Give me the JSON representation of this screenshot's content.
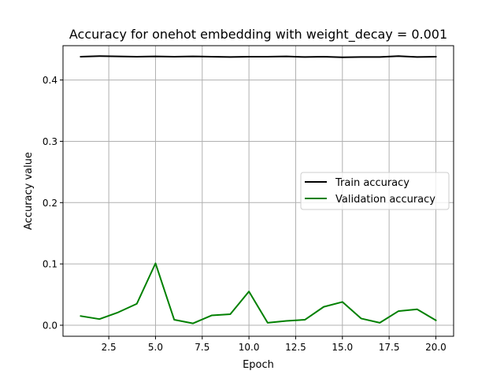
{
  "chart_data": {
    "type": "line",
    "title": "Accuracy for onehot embedding with weight_decay = 0.001",
    "xlabel": "Epoch",
    "ylabel": "Accuracy value",
    "xlim": [
      0.05,
      20.95
    ],
    "ylim": [
      -0.018,
      0.456
    ],
    "xticks": [
      2.5,
      5.0,
      7.5,
      10.0,
      12.5,
      15.0,
      17.5,
      20.0
    ],
    "xtick_labels": [
      "2.5",
      "5.0",
      "7.5",
      "10.0",
      "12.5",
      "15.0",
      "17.5",
      "20.0"
    ],
    "yticks": [
      0.0,
      0.1,
      0.2,
      0.3,
      0.4
    ],
    "ytick_labels": [
      "0.0",
      "0.1",
      "0.2",
      "0.3",
      "0.4"
    ],
    "grid": true,
    "legend_position": "center-right",
    "x": [
      1,
      2,
      3,
      4,
      5,
      6,
      7,
      8,
      9,
      10,
      11,
      12,
      13,
      14,
      15,
      16,
      17,
      18,
      19,
      20
    ],
    "series": [
      {
        "name": "Train accuracy",
        "color": "#000000",
        "values": [
          0.438,
          0.439,
          0.4385,
          0.438,
          0.4385,
          0.438,
          0.4385,
          0.438,
          0.4375,
          0.438,
          0.438,
          0.4385,
          0.4375,
          0.438,
          0.437,
          0.4375,
          0.4375,
          0.439,
          0.4375,
          0.438
        ]
      },
      {
        "name": "Validation accuracy",
        "color": "#008000",
        "values": [
          0.015,
          0.01,
          0.021,
          0.035,
          0.101,
          0.009,
          0.003,
          0.016,
          0.018,
          0.055,
          0.004,
          0.007,
          0.009,
          0.03,
          0.038,
          0.011,
          0.004,
          0.023,
          0.026,
          0.008
        ]
      }
    ]
  }
}
